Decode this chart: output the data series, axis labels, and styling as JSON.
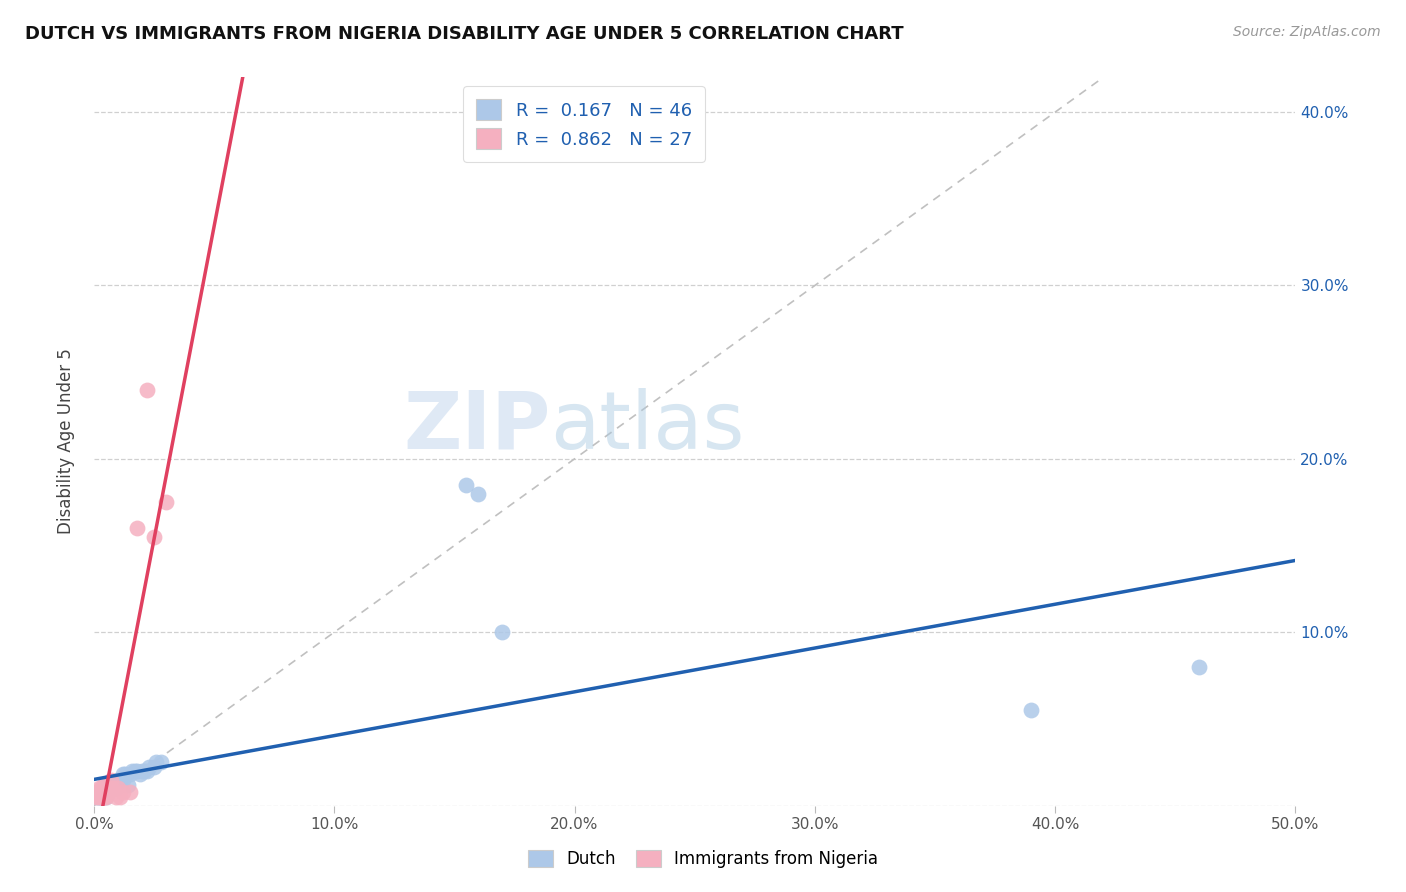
{
  "title": "DUTCH VS IMMIGRANTS FROM NIGERIA DISABILITY AGE UNDER 5 CORRELATION CHART",
  "source": "Source: ZipAtlas.com",
  "ylabel": "Disability Age Under 5",
  "watermark_zip": "ZIP",
  "watermark_atlas": "atlas",
  "xlim": [
    0.0,
    0.5
  ],
  "ylim": [
    0.0,
    0.42
  ],
  "xticks": [
    0.0,
    0.1,
    0.2,
    0.3,
    0.4,
    0.5
  ],
  "yticks": [
    0.0,
    0.1,
    0.2,
    0.3,
    0.4
  ],
  "xticklabels": [
    "0.0%",
    "10.0%",
    "20.0%",
    "30.0%",
    "40.0%",
    "50.0%"
  ],
  "yticklabels_right": [
    "",
    "10.0%",
    "20.0%",
    "30.0%",
    "40.0%"
  ],
  "dutch_R": 0.167,
  "dutch_N": 46,
  "nigeria_R": 0.862,
  "nigeria_N": 27,
  "dutch_color": "#adc8e8",
  "nigeria_color": "#f5b0c0",
  "dutch_line_color": "#2060b0",
  "nigeria_line_color": "#e04060",
  "legend_text_color": "#2060b0",
  "diagonal_color": "#c0c0c0",
  "background_color": "#ffffff",
  "grid_color": "#d0d0d0",
  "dutch_x": [
    0.001,
    0.002,
    0.002,
    0.002,
    0.003,
    0.003,
    0.003,
    0.004,
    0.004,
    0.004,
    0.005,
    0.005,
    0.005,
    0.005,
    0.006,
    0.006,
    0.007,
    0.007,
    0.008,
    0.008,
    0.009,
    0.009,
    0.01,
    0.01,
    0.011,
    0.012,
    0.012,
    0.013,
    0.014,
    0.015,
    0.016,
    0.017,
    0.018,
    0.019,
    0.02,
    0.021,
    0.022,
    0.023,
    0.025,
    0.026,
    0.028,
    0.155,
    0.16,
    0.17,
    0.39,
    0.46
  ],
  "dutch_y": [
    0.005,
    0.005,
    0.005,
    0.008,
    0.005,
    0.005,
    0.008,
    0.005,
    0.008,
    0.01,
    0.005,
    0.008,
    0.01,
    0.012,
    0.01,
    0.012,
    0.01,
    0.012,
    0.01,
    0.012,
    0.01,
    0.013,
    0.012,
    0.015,
    0.015,
    0.015,
    0.018,
    0.018,
    0.012,
    0.018,
    0.02,
    0.02,
    0.02,
    0.018,
    0.02,
    0.02,
    0.02,
    0.022,
    0.022,
    0.025,
    0.025,
    0.185,
    0.18,
    0.1,
    0.055,
    0.08
  ],
  "nigeria_x": [
    0.001,
    0.001,
    0.002,
    0.002,
    0.003,
    0.003,
    0.003,
    0.004,
    0.004,
    0.004,
    0.005,
    0.005,
    0.005,
    0.006,
    0.006,
    0.007,
    0.007,
    0.008,
    0.009,
    0.01,
    0.011,
    0.012,
    0.015,
    0.018,
    0.022,
    0.025,
    0.03
  ],
  "nigeria_y": [
    0.005,
    0.008,
    0.005,
    0.01,
    0.005,
    0.008,
    0.01,
    0.005,
    0.01,
    0.012,
    0.005,
    0.008,
    0.01,
    0.008,
    0.01,
    0.01,
    0.015,
    0.01,
    0.005,
    0.01,
    0.005,
    0.008,
    0.008,
    0.16,
    0.24,
    0.155,
    0.175
  ]
}
